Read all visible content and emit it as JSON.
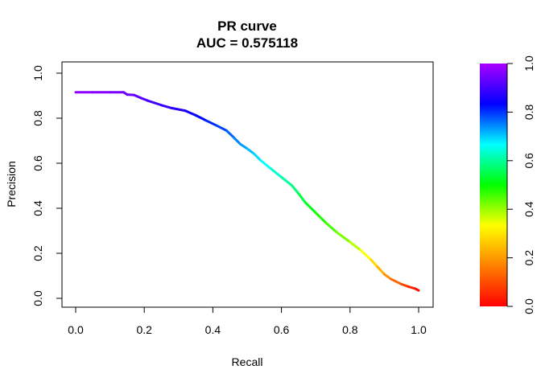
{
  "chart_data": {
    "type": "line",
    "title": "PR curve",
    "subtitle": "AUC = 0.575118",
    "xlabel": "Recall",
    "ylabel": "Precision",
    "xlim": [
      0,
      1
    ],
    "ylim": [
      0,
      1
    ],
    "x_ticks": [
      "0.0",
      "0.2",
      "0.4",
      "0.6",
      "0.8",
      "1.0"
    ],
    "y_ticks": [
      "0.0",
      "0.2",
      "0.4",
      "0.6",
      "0.8",
      "1.0"
    ],
    "grid": false,
    "color_scale": {
      "description": "rainbow colour key for the threshold value",
      "ticks": [
        "0.0",
        "0.2",
        "0.4",
        "0.6",
        "0.8",
        "1.0"
      ],
      "colors": [
        "#ff0000",
        "#ff8000",
        "#ffff00",
        "#00ff00",
        "#00ffff",
        "#0000ff",
        "#aa00ff"
      ]
    },
    "series": [
      {
        "points": [
          [
            0.0,
            0.915,
            0.98
          ],
          [
            0.05,
            0.915,
            0.97
          ],
          [
            0.1,
            0.915,
            0.96
          ],
          [
            0.14,
            0.915,
            0.95
          ],
          [
            0.15,
            0.905,
            0.94
          ],
          [
            0.17,
            0.903,
            0.93
          ],
          [
            0.19,
            0.89,
            0.92
          ],
          [
            0.21,
            0.878,
            0.91
          ],
          [
            0.25,
            0.858,
            0.89
          ],
          [
            0.28,
            0.845,
            0.88
          ],
          [
            0.32,
            0.833,
            0.86
          ],
          [
            0.35,
            0.813,
            0.84
          ],
          [
            0.38,
            0.79,
            0.82
          ],
          [
            0.41,
            0.768,
            0.8
          ],
          [
            0.44,
            0.745,
            0.78
          ],
          [
            0.46,
            0.716,
            0.76
          ],
          [
            0.48,
            0.685,
            0.74
          ],
          [
            0.5,
            0.665,
            0.72
          ],
          [
            0.52,
            0.642,
            0.7
          ],
          [
            0.54,
            0.612,
            0.68
          ],
          [
            0.57,
            0.575,
            0.65
          ],
          [
            0.6,
            0.538,
            0.62
          ],
          [
            0.63,
            0.502,
            0.59
          ],
          [
            0.65,
            0.465,
            0.56
          ],
          [
            0.67,
            0.425,
            0.53
          ],
          [
            0.7,
            0.38,
            0.5
          ],
          [
            0.73,
            0.335,
            0.47
          ],
          [
            0.76,
            0.295,
            0.44
          ],
          [
            0.8,
            0.25,
            0.4
          ],
          [
            0.83,
            0.215,
            0.36
          ],
          [
            0.86,
            0.173,
            0.31
          ],
          [
            0.88,
            0.14,
            0.26
          ],
          [
            0.9,
            0.107,
            0.21
          ],
          [
            0.92,
            0.085,
            0.16
          ],
          [
            0.95,
            0.063,
            0.11
          ],
          [
            0.97,
            0.052,
            0.07
          ],
          [
            0.99,
            0.043,
            0.03
          ],
          [
            1.0,
            0.035,
            0.0
          ]
        ]
      }
    ]
  }
}
